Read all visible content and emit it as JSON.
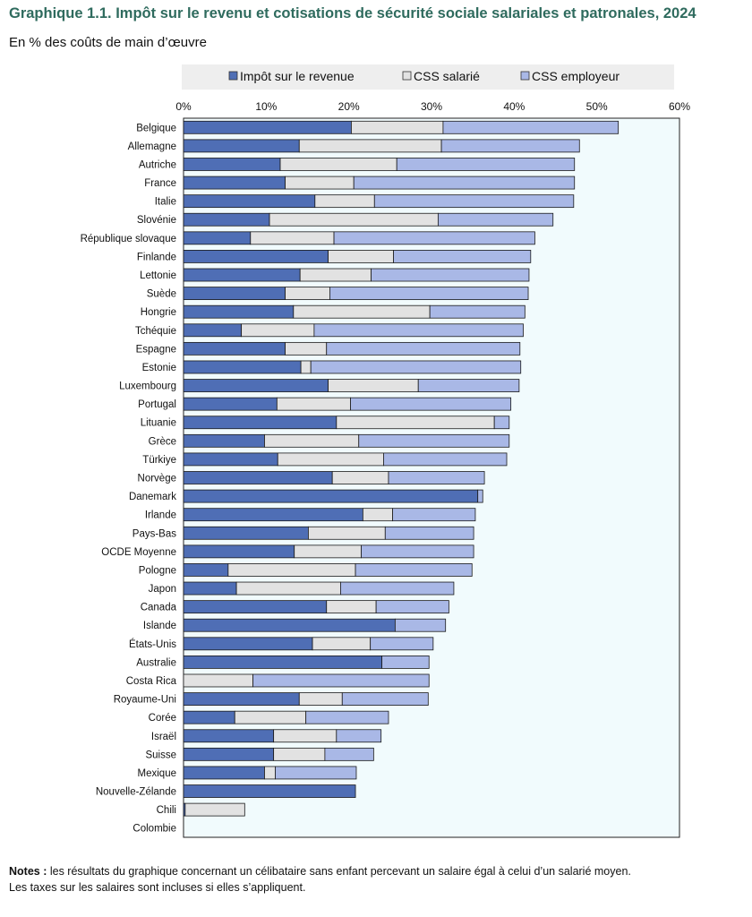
{
  "title": "Graphique 1.1. Impôt sur le revenu et cotisations de sécurité sociale salariales et patronales, 2024",
  "subtitle": "En % des coûts de main d’œuvre",
  "notes": {
    "label": "Notes :",
    "line1": "les résultats du graphique concernant un célibataire sans enfant percevant un salaire égal à celui d’un salarié moyen.",
    "line2": "Les taxes sur les salaires sont incluses si elles s’appliquent."
  },
  "chart_data": {
    "type": "bar",
    "orientation": "horizontal",
    "stacked": true,
    "xlim": [
      0,
      60
    ],
    "xticks": [
      "0%",
      "10%",
      "20%",
      "30%",
      "40%",
      "50%",
      "60%"
    ],
    "legend_position": "top",
    "colors": {
      "series0": "#4f6eb5",
      "series1": "#e2e2e2",
      "series2": "#a9b8e6",
      "plot_bg": "#f1fbfd",
      "legend_bg": "#eeeeee"
    },
    "categories": [
      "Belgique",
      "Allemagne",
      "Autriche",
      "France",
      "Italie",
      "Slovénie",
      "République slovaque",
      "Finlande",
      "Lettonie",
      "Suède",
      "Hongrie",
      "Tchéquie",
      "Espagne",
      "Estonie",
      "Luxembourg",
      "Portugal",
      "Lituanie",
      "Grèce",
      "Türkiye",
      "Norvège",
      "Danemark",
      "Irlande",
      "Pays-Bas",
      "OCDE Moyenne",
      "Pologne",
      "Japon",
      "Canada",
      "Islande",
      "États-Unis",
      "Australie",
      "Costa Rica",
      "Royaume-Uni",
      "Corée",
      "Israël",
      "Suisse",
      "Mexique",
      "Nouvelle-Zélande",
      "Chili",
      "Colombie"
    ],
    "series": [
      {
        "name": "Impôt sur le revenue",
        "values": [
          20.3,
          14.0,
          11.7,
          12.3,
          15.9,
          10.4,
          8.1,
          17.5,
          14.1,
          12.3,
          13.3,
          7.0,
          12.3,
          14.2,
          17.5,
          11.3,
          18.5,
          9.8,
          11.4,
          18.0,
          35.6,
          21.7,
          15.1,
          13.4,
          5.4,
          6.4,
          17.3,
          25.6,
          15.6,
          24.0,
          0.0,
          14.0,
          6.2,
          10.9,
          10.9,
          9.8,
          20.8,
          0.2,
          0.0
        ]
      },
      {
        "name": "CSS salarié",
        "values": [
          11.1,
          17.2,
          14.1,
          8.3,
          7.2,
          20.4,
          10.1,
          7.9,
          8.6,
          5.4,
          16.5,
          8.8,
          5.0,
          1.2,
          10.9,
          8.9,
          19.1,
          11.4,
          12.8,
          6.8,
          0.0,
          3.6,
          9.3,
          8.1,
          15.4,
          12.6,
          6.0,
          0.0,
          7.0,
          0.0,
          8.4,
          5.2,
          8.6,
          7.6,
          6.2,
          1.3,
          0.0,
          7.2,
          0.0
        ]
      },
      {
        "name": "CSS employeur",
        "values": [
          21.2,
          16.7,
          21.5,
          26.7,
          24.1,
          13.9,
          24.3,
          16.6,
          19.1,
          24.0,
          11.5,
          25.3,
          23.4,
          25.4,
          12.2,
          19.4,
          1.8,
          18.2,
          14.9,
          11.6,
          0.6,
          10.0,
          10.7,
          13.6,
          14.1,
          13.7,
          8.8,
          6.1,
          7.6,
          5.7,
          21.3,
          10.4,
          10.0,
          5.4,
          5.9,
          9.8,
          0.0,
          0.0,
          0.0
        ]
      }
    ]
  }
}
